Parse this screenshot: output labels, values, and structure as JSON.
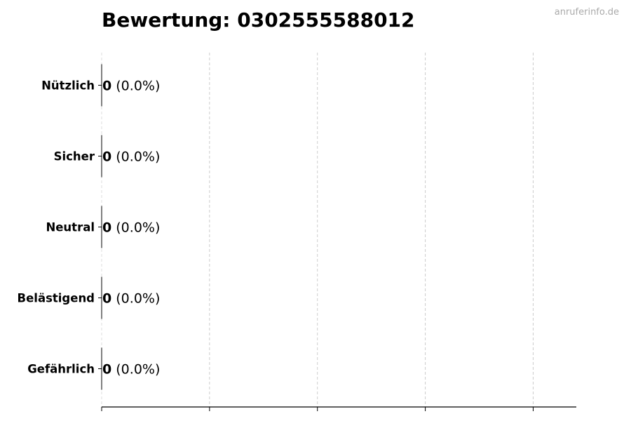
{
  "watermark": "anruferinfo.de",
  "chart_data": {
    "type": "bar",
    "orientation": "horizontal",
    "title": "Bewertung: 0302555588012",
    "categories": [
      "Nützlich",
      "Sicher",
      "Neutral",
      "Belästigend",
      "Gefährlich"
    ],
    "values": [
      0,
      0,
      0,
      0,
      0
    ],
    "percentages": [
      "0.0%",
      "0.0%",
      "0.0%",
      "0.0%",
      "0.0%"
    ],
    "xlim": [
      0,
      4.4
    ],
    "x_ticks": [
      0,
      1,
      2,
      3,
      4
    ],
    "grid": "vertical dashed",
    "bar_color": "#000000"
  }
}
